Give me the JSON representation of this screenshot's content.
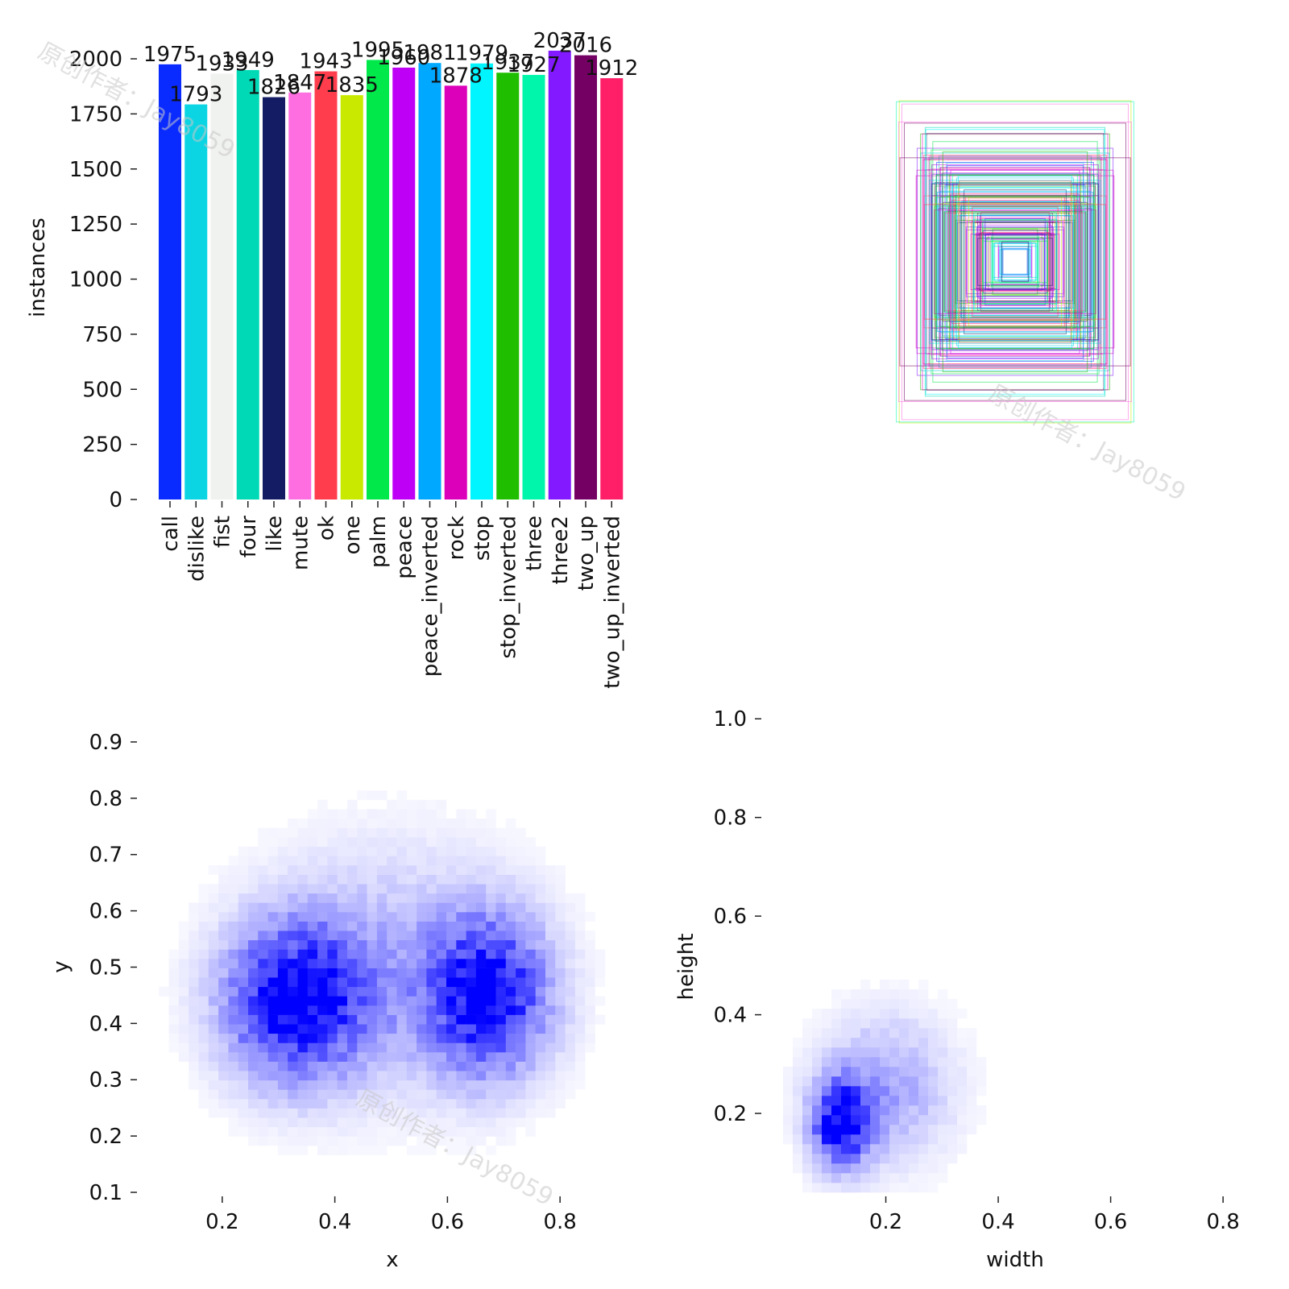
{
  "watermark": "原创作者：Jay8059",
  "chart_data": [
    {
      "type": "bar",
      "ylabel": "instances",
      "ylim": [
        0,
        2000
      ],
      "yticks": [
        0,
        250,
        500,
        750,
        1000,
        1250,
        1500,
        1750,
        2000
      ],
      "categories": [
        "call",
        "dislike",
        "fist",
        "four",
        "like",
        "mute",
        "ok",
        "one",
        "palm",
        "peace",
        "peace_inverted",
        "rock",
        "stop",
        "stop_inverted",
        "three",
        "three2",
        "two_up",
        "two_up_inverted"
      ],
      "values": [
        1975,
        1793,
        1933,
        1949,
        1826,
        1847,
        1943,
        1835,
        1995,
        1960,
        1981,
        1878,
        1979,
        1937,
        1927,
        2037,
        2016,
        1912
      ],
      "colors": [
        "#0a2bff",
        "#0bd4e3",
        "#f0f2ef",
        "#00d9b5",
        "#141d63",
        "#ff6ee0",
        "#ff3d4d",
        "#c9ea00",
        "#00e84a",
        "#bf00f6",
        "#00a8ff",
        "#dd00bb",
        "#00f5ff",
        "#1fbf00",
        "#00f7ab",
        "#8219ff",
        "#740063",
        "#ff1e68"
      ]
    },
    {
      "type": "boxes",
      "title": "",
      "note": "overlay of label bounding boxes centered at origin"
    },
    {
      "type": "heatmap",
      "xlabel": "x",
      "ylabel": "y",
      "xticks": [
        0.2,
        0.4,
        0.6,
        0.8
      ],
      "yticks": [
        0.1,
        0.2,
        0.3,
        0.4,
        0.5,
        0.6,
        0.7,
        0.8,
        0.9
      ],
      "xlim": [
        0.07,
        0.95
      ],
      "ylim": [
        0.1,
        0.93
      ],
      "clusters": [
        {
          "cx": 0.33,
          "cy": 0.44,
          "sx": 0.085,
          "sy": 0.095,
          "w": 1.0
        },
        {
          "cx": 0.67,
          "cy": 0.45,
          "sx": 0.075,
          "sy": 0.095,
          "w": 0.95
        },
        {
          "cx": 0.5,
          "cy": 0.5,
          "sx": 0.15,
          "sy": 0.15,
          "w": 0.25
        }
      ]
    },
    {
      "type": "heatmap",
      "xlabel": "width",
      "ylabel": "height",
      "xticks": [
        0.2,
        0.4,
        0.6,
        0.8
      ],
      "yticks": [
        0.2,
        0.4,
        0.6,
        0.8,
        1.0
      ],
      "xlim": [
        0.0,
        0.86
      ],
      "ylim": [
        0.04,
        1.02
      ],
      "clusters": [
        {
          "cx": 0.12,
          "cy": 0.18,
          "sx": 0.035,
          "sy": 0.06,
          "w": 1.0
        },
        {
          "cx": 0.2,
          "cy": 0.25,
          "sx": 0.08,
          "sy": 0.1,
          "w": 0.35
        }
      ]
    }
  ]
}
